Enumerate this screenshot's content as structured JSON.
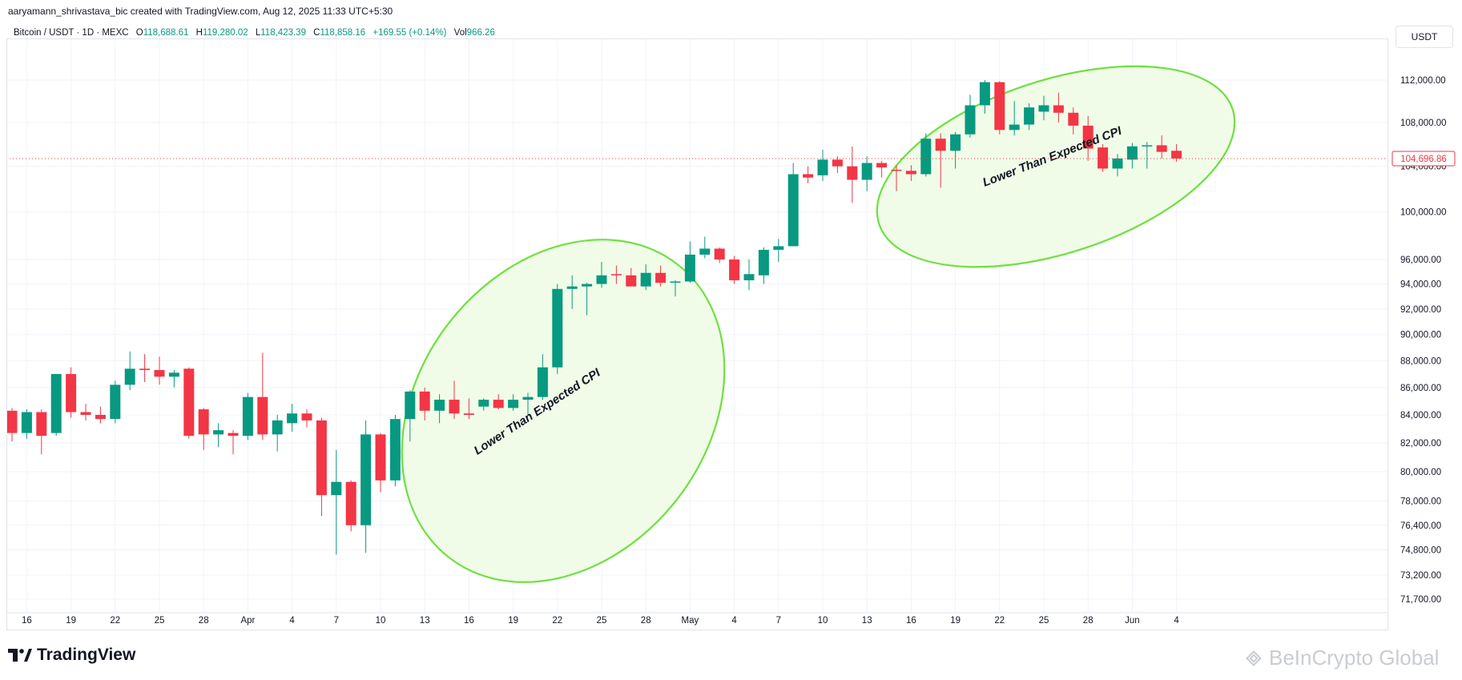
{
  "header": {
    "credit": "aaryamann_shrivastava_bic created with TradingView.com, Aug 12, 2025 11:33 UTC+5:30",
    "symbol": "Bitcoin / USDT · 1D · MEXC",
    "o_label": "O",
    "o_value": "118,688.61",
    "h_label": "H",
    "h_value": "119,280.02",
    "l_label": "L",
    "l_value": "118,423.39",
    "c_label": "C",
    "c_value": "118,858.16",
    "change": "+169.55 (+0.14%)",
    "vol_label": "Vol",
    "vol_value": "966.26",
    "unit": "USDT"
  },
  "footer": {
    "brand": "TradingView",
    "watermark": "BeInCrypto Global"
  },
  "colors": {
    "up": "#089981",
    "down": "#f23645",
    "ellipse_stroke": "#6ee03f",
    "ellipse_fill": "#eefce6",
    "price_label": "#f23645"
  },
  "chart_data": {
    "type": "candlestick",
    "y_axis": {
      "ticks": [
        112000,
        108000,
        104000,
        100000,
        96000,
        94000,
        92000,
        90000,
        88000,
        86000,
        84000,
        82000,
        80000,
        78000,
        76400,
        74800,
        73200,
        71700
      ],
      "tick_labels": [
        "112,000.00",
        "108,000.00",
        "104,000.00",
        "100,000.00",
        "96,000.00",
        "94,000.00",
        "92,000.00",
        "90,000.00",
        "88,000.00",
        "86,000.00",
        "84,000.00",
        "82,000.00",
        "80,000.00",
        "78,000.00",
        "76,400.00",
        "74,800.00",
        "73,200.00",
        "71,700.00"
      ],
      "scale": "log",
      "range": [
        71000,
        115000
      ]
    },
    "x_axis": {
      "labels": [
        "16",
        "19",
        "22",
        "25",
        "28",
        "Apr",
        "4",
        "7",
        "10",
        "13",
        "16",
        "19",
        "22",
        "25",
        "28",
        "May",
        "4",
        "7",
        "10",
        "13",
        "16",
        "19",
        "22",
        "25",
        "28",
        "Jun",
        "4"
      ],
      "start_index": 1,
      "step": 3
    },
    "last_price_label": "104,696.86",
    "last_price": 104697,
    "candles": [
      [
        84300,
        84500,
        82100,
        82700
      ],
      [
        82700,
        84400,
        82300,
        84200
      ],
      [
        84200,
        84400,
        81200,
        82500
      ],
      [
        82700,
        87000,
        82500,
        87000
      ],
      [
        87000,
        87500,
        83800,
        84200
      ],
      [
        84200,
        84800,
        83600,
        84000
      ],
      [
        84000,
        84600,
        83400,
        83700
      ],
      [
        83700,
        86500,
        83400,
        86200
      ],
      [
        86200,
        88700,
        85800,
        87400
      ],
      [
        87400,
        88500,
        86400,
        87300
      ],
      [
        87300,
        88300,
        86200,
        86800
      ],
      [
        86800,
        87300,
        86000,
        87100
      ],
      [
        87400,
        87500,
        82300,
        82500
      ],
      [
        84400,
        84500,
        81500,
        82600
      ],
      [
        82600,
        83400,
        81700,
        82900
      ],
      [
        82700,
        82900,
        81200,
        82500
      ],
      [
        82500,
        85600,
        82200,
        85300
      ],
      [
        85300,
        88600,
        82200,
        82600
      ],
      [
        82600,
        84000,
        81400,
        83600
      ],
      [
        83400,
        84800,
        82800,
        84100
      ],
      [
        84100,
        84400,
        83100,
        83600
      ],
      [
        83600,
        83800,
        77000,
        78400
      ],
      [
        78400,
        81500,
        74500,
        79300
      ],
      [
        79300,
        79400,
        76000,
        76400
      ],
      [
        76400,
        83600,
        74600,
        82600
      ],
      [
        82600,
        82700,
        78600,
        79400
      ],
      [
        79400,
        84000,
        79000,
        83700
      ],
      [
        83700,
        85800,
        82100,
        85700
      ],
      [
        85700,
        86000,
        83600,
        84300
      ],
      [
        84300,
        85500,
        83400,
        85100
      ],
      [
        85100,
        86500,
        83700,
        84100
      ],
      [
        84100,
        85200,
        83700,
        84000
      ],
      [
        84600,
        85200,
        84300,
        85100
      ],
      [
        85100,
        85500,
        84400,
        84500
      ],
      [
        84500,
        85500,
        84300,
        85100
      ],
      [
        85100,
        85600,
        84000,
        85300
      ],
      [
        85300,
        88500,
        85100,
        87500
      ],
      [
        87500,
        94000,
        87000,
        93600
      ],
      [
        93600,
        94700,
        92000,
        93800
      ],
      [
        93800,
        94100,
        91500,
        94000
      ],
      [
        94000,
        95800,
        93700,
        94700
      ],
      [
        94800,
        95500,
        94000,
        94700
      ],
      [
        94700,
        95300,
        94000,
        93800
      ],
      [
        93800,
        95600,
        93500,
        94900
      ],
      [
        94900,
        95500,
        93800,
        94100
      ],
      [
        94200,
        94300,
        93000,
        94200
      ],
      [
        94200,
        97500,
        94100,
        96400
      ],
      [
        96400,
        97900,
        96100,
        96900
      ],
      [
        96900,
        97000,
        95700,
        96000
      ],
      [
        96000,
        96300,
        94000,
        94300
      ],
      [
        94300,
        96000,
        93500,
        94800
      ],
      [
        94700,
        97000,
        94000,
        96800
      ],
      [
        96800,
        97700,
        95800,
        97100
      ],
      [
        97100,
        104300,
        97100,
        103300
      ],
      [
        103300,
        104000,
        102500,
        103000
      ],
      [
        103200,
        105500,
        102700,
        104600
      ],
      [
        104600,
        104900,
        103400,
        104000
      ],
      [
        104000,
        105800,
        100800,
        102800
      ],
      [
        102800,
        104900,
        101800,
        104300
      ],
      [
        104300,
        104500,
        103000,
        103900
      ],
      [
        103700,
        104100,
        101800,
        103600
      ],
      [
        103600,
        104100,
        102700,
        103300
      ],
      [
        103300,
        107000,
        103100,
        106500
      ],
      [
        106500,
        107000,
        102100,
        105400
      ],
      [
        105400,
        107100,
        103800,
        106900
      ],
      [
        106900,
        110600,
        106600,
        109600
      ],
      [
        109600,
        112000,
        108800,
        111800
      ],
      [
        111800,
        111900,
        106900,
        107300
      ],
      [
        107300,
        110000,
        106800,
        107800
      ],
      [
        107800,
        109800,
        107300,
        109400
      ],
      [
        109000,
        110500,
        108200,
        109600
      ],
      [
        109600,
        110800,
        108000,
        108900
      ],
      [
        108900,
        109400,
        106900,
        107700
      ],
      [
        107700,
        108600,
        104500,
        105600
      ],
      [
        105700,
        106000,
        103500,
        103800
      ],
      [
        103800,
        105100,
        103100,
        104700
      ],
      [
        104600,
        106100,
        103800,
        105800
      ],
      [
        105800,
        106200,
        103800,
        105900
      ],
      [
        105900,
        106800,
        104700,
        105300
      ],
      [
        105400,
        106000,
        104400,
        104700
      ]
    ],
    "annotations": [
      {
        "text": "Lower Than Expected CPI",
        "shape": "ellipse"
      },
      {
        "text": "Lower Than Expected CPI",
        "shape": "ellipse"
      }
    ]
  }
}
